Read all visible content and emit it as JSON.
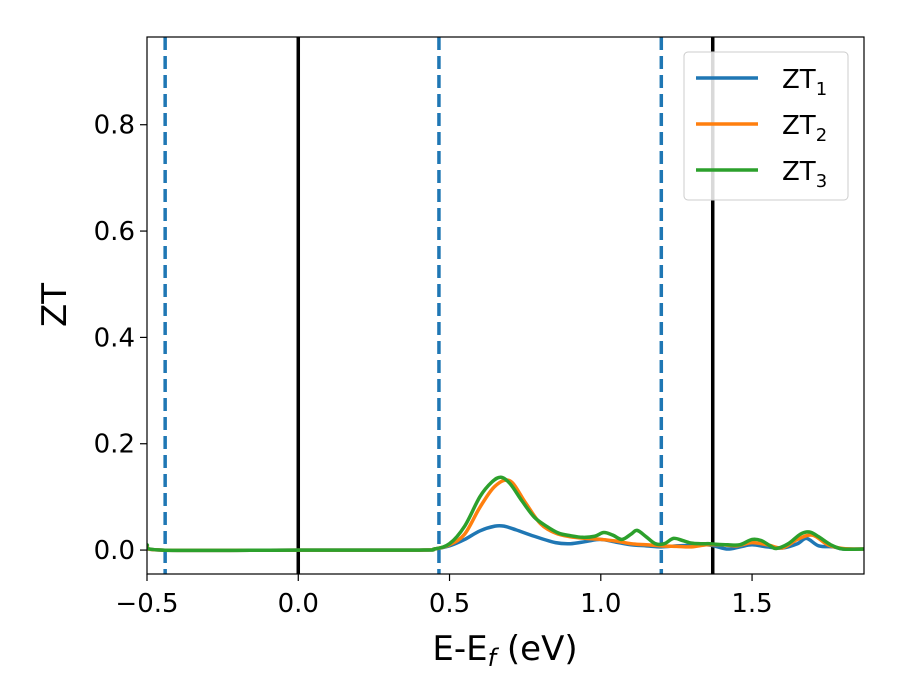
{
  "chart_data": {
    "type": "line",
    "title": "",
    "xlabel": {
      "main": "E-E",
      "sub": "f",
      "unit": " (eV)"
    },
    "ylabel": "ZT",
    "xlim": [
      -0.5,
      1.87
    ],
    "ylim": [
      -0.045,
      0.965
    ],
    "xticks": [
      -0.5,
      0.0,
      0.5,
      1.0,
      1.5
    ],
    "xtick_labels": [
      "−0.5",
      "0.0",
      "0.5",
      "1.0",
      "1.5"
    ],
    "yticks": [
      0.0,
      0.2,
      0.4,
      0.6,
      0.8
    ],
    "ytick_labels": [
      "0.0",
      "0.2",
      "0.4",
      "0.6",
      "0.8"
    ],
    "grid": false,
    "legend": {
      "placement": "top-right",
      "entries": [
        {
          "main": "ZT",
          "sub": "1"
        },
        {
          "main": "ZT",
          "sub": "2"
        },
        {
          "main": "ZT",
          "sub": "3"
        }
      ]
    },
    "vertical_lines": [
      {
        "x": -0.44,
        "style": "dashed",
        "color": "#1f77b4"
      },
      {
        "x": 0.0,
        "style": "solid",
        "color": "#000000"
      },
      {
        "x": 0.465,
        "style": "dashed",
        "color": "#1f77b4"
      },
      {
        "x": 1.2,
        "style": "dashed",
        "color": "#1f77b4"
      },
      {
        "x": 1.37,
        "style": "solid",
        "color": "#000000"
      }
    ],
    "series": [
      {
        "color": "#1f77b4",
        "x": [
          -0.5,
          -0.45,
          0.0,
          0.4,
          0.45,
          0.5,
          0.55,
          0.6,
          0.65,
          0.68,
          0.72,
          0.78,
          0.85,
          0.9,
          0.95,
          1.0,
          1.05,
          1.1,
          1.15,
          1.2,
          1.25,
          1.3,
          1.35,
          1.38,
          1.42,
          1.46,
          1.5,
          1.55,
          1.6,
          1.65,
          1.68,
          1.72,
          1.77,
          1.8,
          1.87
        ],
        "y": [
          0.008,
          0.0,
          0.0,
          0.0,
          0.002,
          0.008,
          0.02,
          0.036,
          0.045,
          0.045,
          0.038,
          0.026,
          0.014,
          0.012,
          0.016,
          0.02,
          0.015,
          0.01,
          0.008,
          0.006,
          0.008,
          0.009,
          0.01,
          0.007,
          0.002,
          0.006,
          0.01,
          0.006,
          0.004,
          0.012,
          0.022,
          0.008,
          0.006,
          0.002,
          0.002
        ]
      },
      {
        "color": "#ff7f0e",
        "x": [
          -0.5,
          -0.45,
          0.0,
          0.4,
          0.45,
          0.5,
          0.55,
          0.6,
          0.65,
          0.7,
          0.75,
          0.8,
          0.85,
          0.9,
          0.95,
          1.0,
          1.05,
          1.1,
          1.15,
          1.2,
          1.25,
          1.3,
          1.35,
          1.4,
          1.45,
          1.5,
          1.55,
          1.6,
          1.65,
          1.7,
          1.75,
          1.8,
          1.87
        ],
        "y": [
          0.008,
          0.0,
          0.0,
          0.0,
          0.002,
          0.01,
          0.03,
          0.08,
          0.12,
          0.13,
          0.09,
          0.05,
          0.032,
          0.025,
          0.022,
          0.02,
          0.017,
          0.012,
          0.01,
          0.008,
          0.007,
          0.006,
          0.01,
          0.01,
          0.008,
          0.014,
          0.01,
          0.004,
          0.02,
          0.028,
          0.01,
          0.003,
          0.002
        ]
      },
      {
        "color": "#2ca02c",
        "x": [
          -0.5,
          -0.45,
          0.0,
          0.4,
          0.45,
          0.5,
          0.55,
          0.6,
          0.64,
          0.67,
          0.7,
          0.74,
          0.78,
          0.82,
          0.86,
          0.9,
          0.94,
          0.98,
          1.01,
          1.04,
          1.07,
          1.1,
          1.12,
          1.15,
          1.18,
          1.21,
          1.24,
          1.27,
          1.3,
          1.33,
          1.36,
          1.38,
          1.42,
          1.46,
          1.5,
          1.53,
          1.56,
          1.58,
          1.62,
          1.66,
          1.69,
          1.72,
          1.76,
          1.8,
          1.87
        ],
        "y": [
          0.01,
          0.0,
          0.0,
          0.0,
          0.002,
          0.012,
          0.045,
          0.1,
          0.128,
          0.137,
          0.125,
          0.092,
          0.062,
          0.045,
          0.032,
          0.027,
          0.024,
          0.026,
          0.033,
          0.028,
          0.02,
          0.03,
          0.037,
          0.025,
          0.012,
          0.012,
          0.022,
          0.018,
          0.013,
          0.012,
          0.012,
          0.011,
          0.01,
          0.01,
          0.02,
          0.018,
          0.008,
          0.003,
          0.012,
          0.03,
          0.034,
          0.025,
          0.01,
          0.002,
          0.002
        ]
      }
    ]
  }
}
